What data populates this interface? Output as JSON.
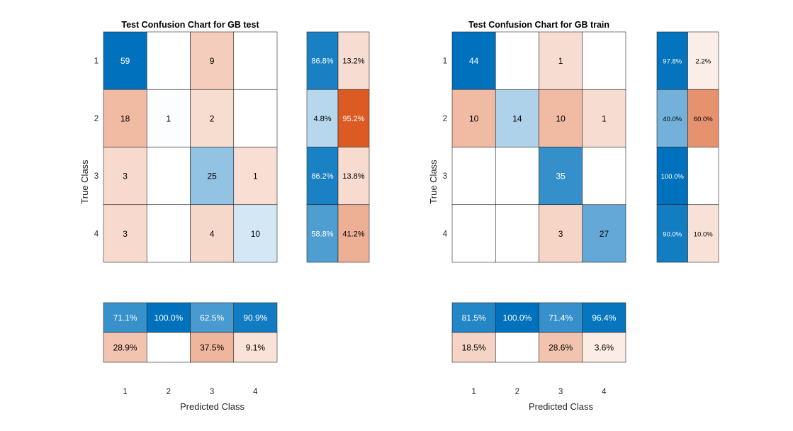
{
  "chart_data": [
    {
      "type": "confusion-matrix",
      "title": "Test Confusion Chart for GB test",
      "xlabel": "Predicted Class",
      "ylabel": "True Class",
      "classes": [
        "1",
        "2",
        "3",
        "4"
      ],
      "matrix": [
        [
          59,
          0,
          9,
          0
        ],
        [
          18,
          1,
          2,
          0
        ],
        [
          3,
          0,
          25,
          1
        ],
        [
          3,
          0,
          4,
          10
        ]
      ],
      "row_summary": {
        "correct": [
          "86.8%",
          "4.8%",
          "86.2%",
          "58.8%"
        ],
        "incorrect": [
          "13.2%",
          "95.2%",
          "13.8%",
          "41.2%"
        ]
      },
      "column_summary": {
        "correct": [
          "71.1%",
          "100.0%",
          "62.5%",
          "90.9%"
        ],
        "incorrect": [
          "28.9%",
          "",
          "37.5%",
          "9.1%"
        ]
      }
    },
    {
      "type": "confusion-matrix",
      "title": "Test Confusion Chart for GB train",
      "xlabel": "Predicted Class",
      "ylabel": "True Class",
      "classes": [
        "1",
        "2",
        "3",
        "4"
      ],
      "matrix": [
        [
          44,
          0,
          1,
          0
        ],
        [
          10,
          14,
          10,
          1
        ],
        [
          0,
          0,
          35,
          0
        ],
        [
          0,
          0,
          3,
          27
        ]
      ],
      "row_summary": {
        "correct": [
          "97.8%",
          "40.0%",
          "100.0%",
          "90.0%"
        ],
        "incorrect": [
          "2.2%",
          "60.0%",
          "",
          "10.0%"
        ]
      },
      "column_summary": {
        "correct": [
          "81.5%",
          "100.0%",
          "71.4%",
          "96.4%"
        ],
        "incorrect": [
          "18.5%",
          "",
          "28.6%",
          "3.6%"
        ]
      }
    }
  ],
  "colors": {
    "blue": "#0072BD",
    "orange": "#D95319",
    "grid": "#262626",
    "text": "#262626"
  }
}
